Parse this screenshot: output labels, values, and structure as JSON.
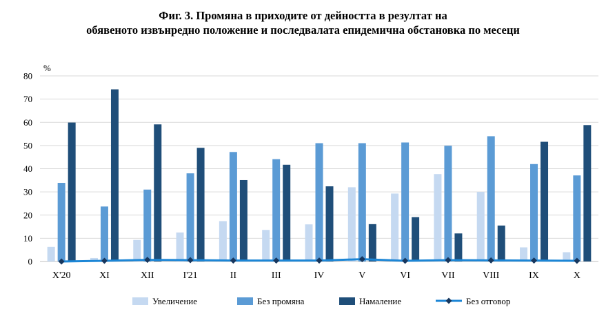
{
  "chart_data": {
    "type": "bar",
    "title": "Фиг. 3. Промяна в приходите от дейността в резултат на",
    "subtitle": "обявеното извънредно положение и последвалата епидемична обстановка по месеци",
    "ylabel": "%",
    "xlabel": "",
    "ylim": [
      0,
      80
    ],
    "yticks": [
      "0",
      "10",
      "20",
      "30",
      "40",
      "50",
      "60",
      "70",
      "80"
    ],
    "grid": true,
    "legend_position": "bottom",
    "categories": [
      "X'20",
      "XI",
      "XII",
      "I'21",
      "II",
      "III",
      "IV",
      "V",
      "VI",
      "VII",
      "VIII",
      "IX",
      "X"
    ],
    "series": [
      {
        "name": "Увеличение",
        "kind": "bar",
        "color": "#c5d9f1",
        "values": [
          6.3,
          1.5,
          9.3,
          12.5,
          17.4,
          13.6,
          16.0,
          32.0,
          29.3,
          37.7,
          30.0,
          6.1,
          4.0
        ]
      },
      {
        "name": "Без промяна",
        "kind": "bar",
        "color": "#5b9bd5",
        "values": [
          33.9,
          23.7,
          31.0,
          38.0,
          47.2,
          44.1,
          51.0,
          51.0,
          51.3,
          49.9,
          54.0,
          42.0,
          37.1
        ]
      },
      {
        "name": "Намаление",
        "kind": "bar",
        "color": "#1f4e79",
        "values": [
          59.9,
          74.2,
          59.1,
          49.0,
          35.1,
          41.7,
          32.4,
          16.1,
          19.1,
          12.1,
          15.5,
          51.6,
          58.8
        ]
      },
      {
        "name": "Без отговор",
        "kind": "line",
        "color": "#1c86d6",
        "marker_color": "#17375e",
        "values": [
          0.0,
          0.3,
          0.7,
          0.6,
          0.4,
          0.4,
          0.4,
          1.0,
          0.3,
          0.6,
          0.5,
          0.4,
          0.3
        ]
      }
    ]
  }
}
